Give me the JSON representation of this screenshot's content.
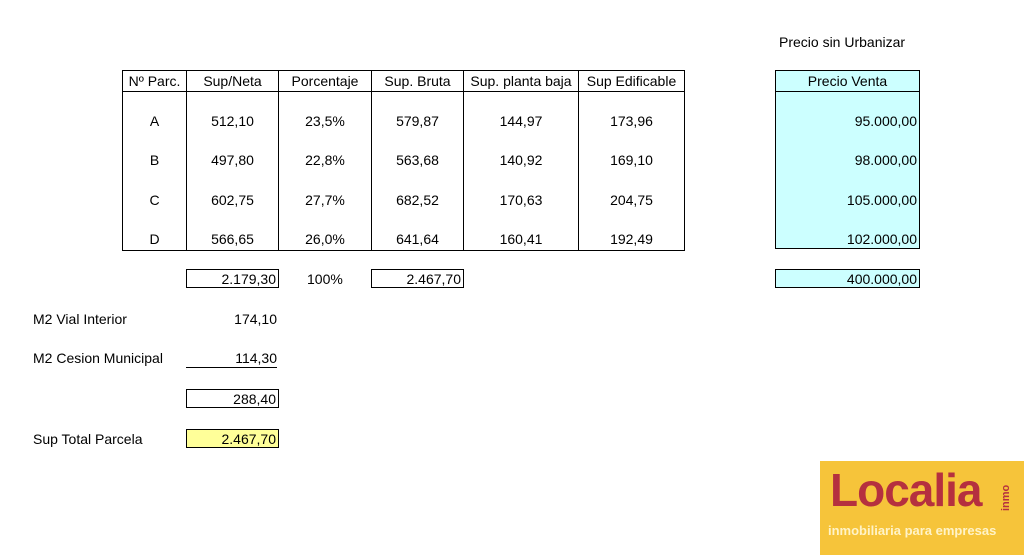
{
  "price_heading": "Precio sin Urbanizar",
  "table": {
    "headers": [
      "Nº Parc.",
      "Sup/Neta",
      "Porcentaje",
      "Sup. Bruta",
      "Sup. planta baja",
      "Sup Edificable"
    ],
    "rows": [
      [
        "A",
        "512,10",
        "23,5%",
        "579,87",
        "144,97",
        "173,96"
      ],
      [
        "B",
        "497,80",
        "22,8%",
        "563,68",
        "140,92",
        "169,10"
      ],
      [
        "C",
        "602,75",
        "27,7%",
        "682,52",
        "170,63",
        "204,75"
      ],
      [
        "D",
        "566,65",
        "26,0%",
        "641,64",
        "160,41",
        "192,49"
      ]
    ]
  },
  "precio_venta": {
    "header": "Precio Venta",
    "values": [
      "95.000,00",
      "98.000,00",
      "105.000,00",
      "102.000,00"
    ],
    "total": "400.000,00"
  },
  "totals": {
    "sup_neta": "2.179,30",
    "porcentaje": "100%",
    "sup_bruta": "2.467,70"
  },
  "summary": {
    "vial_label": "M2 Vial Interior",
    "vial_value": "174,10",
    "cesion_label": "M2 Cesion Municipal",
    "cesion_value": "114,30",
    "subtotal": "288,40",
    "total_label": "Sup Total Parcela",
    "total_value": "2.467,70"
  },
  "logo": {
    "name": "Localia",
    "suffix": "inmo",
    "tagline": "inmobiliaria para empresas"
  },
  "colors": {
    "price_fill": "#ccffff",
    "total_fill": "#ffff99",
    "logo_bg": "#f6c43a",
    "logo_text": "#b5303f"
  }
}
